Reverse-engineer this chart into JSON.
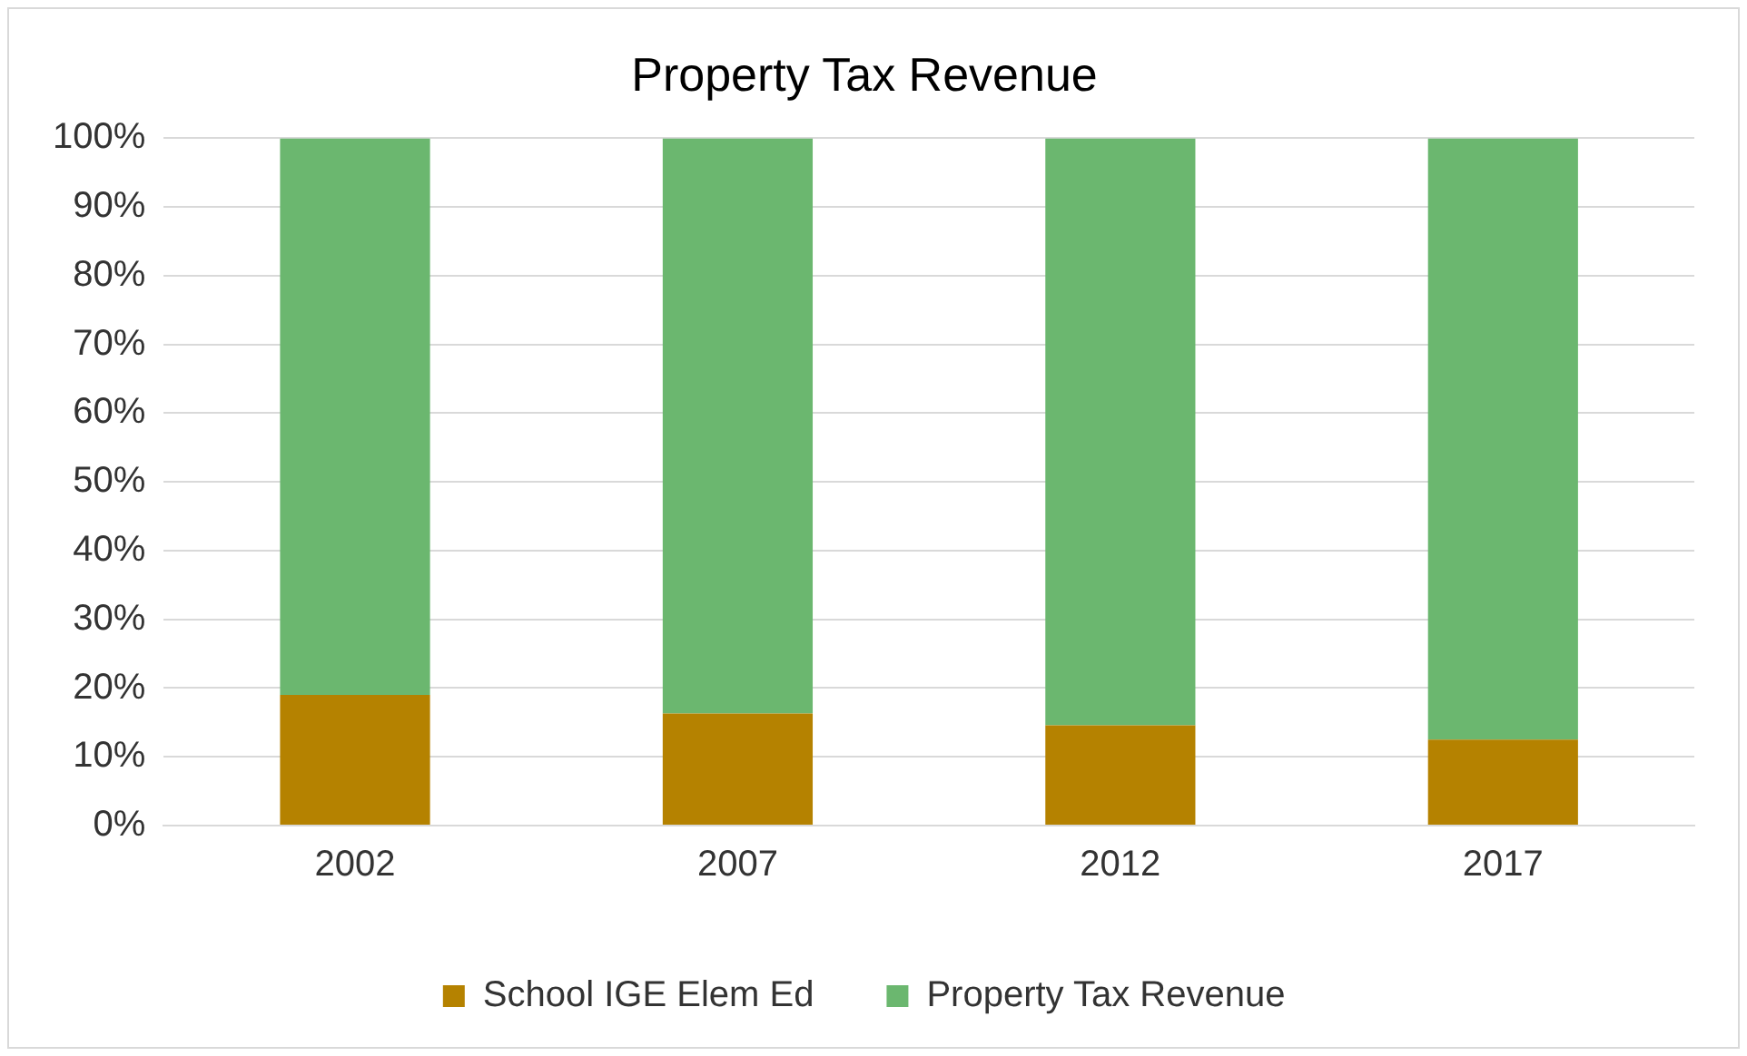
{
  "chart_data": {
    "type": "bar",
    "title": "Property Tax Revenue",
    "categories": [
      "2002",
      "2007",
      "2012",
      "2017"
    ],
    "stacked": true,
    "series": [
      {
        "name": "School IGE Elem Ed",
        "color": "#b58200",
        "values": [
          19,
          16.3,
          14.6,
          12.5
        ]
      },
      {
        "name": "Property Tax Revenue",
        "color": "#6bb76f",
        "values": [
          81,
          83.7,
          85.4,
          87.5
        ]
      }
    ],
    "ylim": [
      0,
      100
    ],
    "yticks": [
      {
        "value": 0,
        "label": "0%"
      },
      {
        "value": 10,
        "label": "10%"
      },
      {
        "value": 20,
        "label": "20%"
      },
      {
        "value": 30,
        "label": "30%"
      },
      {
        "value": 40,
        "label": "40%"
      },
      {
        "value": 50,
        "label": "50%"
      },
      {
        "value": 60,
        "label": "60%"
      },
      {
        "value": 70,
        "label": "70%"
      },
      {
        "value": 80,
        "label": "80%"
      },
      {
        "value": 90,
        "label": "90%"
      },
      {
        "value": 100,
        "label": "100%"
      }
    ],
    "grid": "y",
    "legend": "bottom"
  }
}
